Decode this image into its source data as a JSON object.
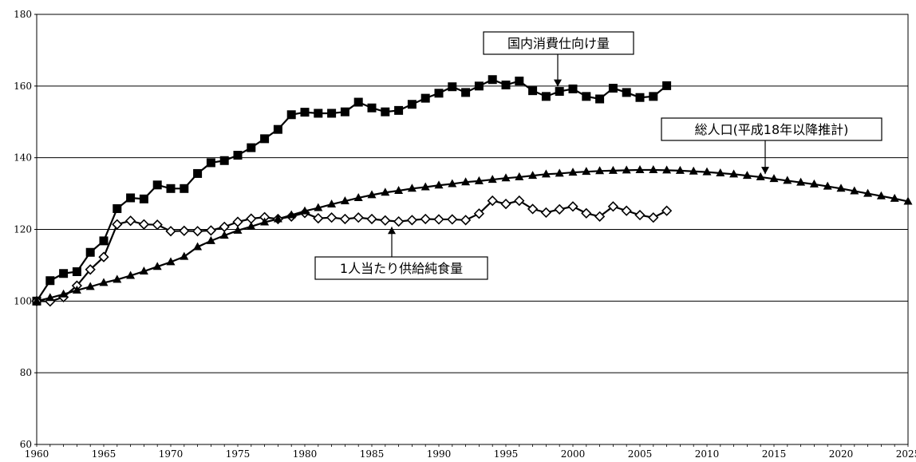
{
  "chart_data": {
    "type": "line",
    "title": "",
    "xlabel": "",
    "ylabel": "",
    "xlim": [
      1960,
      2025
    ],
    "ylim": [
      60,
      180
    ],
    "yticks": [
      60,
      80,
      100,
      120,
      140,
      160,
      180
    ],
    "xticks": [
      1960,
      1965,
      1970,
      1975,
      1980,
      1985,
      1990,
      1995,
      2000,
      2005,
      2010,
      2015,
      2020,
      2025
    ],
    "grid": "horizontal",
    "legend": "none",
    "series": [
      {
        "name": "国内消費仕向け量",
        "marker": "square-filled",
        "color": "#000000",
        "points": [
          [
            1960,
            100.0
          ],
          [
            1961,
            105.7
          ],
          [
            1962,
            107.7
          ],
          [
            1963,
            108.2
          ],
          [
            1964,
            113.6
          ],
          [
            1965,
            116.8
          ],
          [
            1966,
            125.8
          ],
          [
            1967,
            128.8
          ],
          [
            1968,
            128.5
          ],
          [
            1969,
            132.4
          ],
          [
            1970,
            131.4
          ],
          [
            1971,
            131.4
          ],
          [
            1972,
            135.6
          ],
          [
            1973,
            138.6
          ],
          [
            1974,
            139.2
          ],
          [
            1975,
            140.7
          ],
          [
            1976,
            142.8
          ],
          [
            1977,
            145.3
          ],
          [
            1978,
            147.9
          ],
          [
            1979,
            152.0
          ],
          [
            1980,
            152.7
          ],
          [
            1981,
            152.4
          ],
          [
            1982,
            152.4
          ],
          [
            1983,
            152.8
          ],
          [
            1984,
            155.5
          ],
          [
            1985,
            153.9
          ],
          [
            1986,
            152.8
          ],
          [
            1987,
            153.2
          ],
          [
            1988,
            154.9
          ],
          [
            1989,
            156.6
          ],
          [
            1990,
            158.0
          ],
          [
            1991,
            159.8
          ],
          [
            1992,
            158.2
          ],
          [
            1993,
            160.0
          ],
          [
            1994,
            161.8
          ],
          [
            1995,
            160.3
          ],
          [
            1996,
            161.4
          ],
          [
            1997,
            158.7
          ],
          [
            1998,
            157.1
          ],
          [
            1999,
            158.5
          ],
          [
            2000,
            159.2
          ],
          [
            2001,
            157.1
          ],
          [
            2002,
            156.4
          ],
          [
            2003,
            159.4
          ],
          [
            2004,
            158.2
          ],
          [
            2005,
            156.8
          ],
          [
            2006,
            157.1
          ],
          [
            2007,
            160.1
          ]
        ]
      },
      {
        "name": "1人当たり供給純食量",
        "marker": "diamond-open",
        "color": "#000000",
        "points": [
          [
            1960,
            100.0
          ],
          [
            1961,
            99.9
          ],
          [
            1962,
            101.1
          ],
          [
            1963,
            104.3
          ],
          [
            1964,
            108.8
          ],
          [
            1965,
            112.3
          ],
          [
            1966,
            121.4
          ],
          [
            1967,
            122.4
          ],
          [
            1968,
            121.4
          ],
          [
            1969,
            121.3
          ],
          [
            1970,
            119.5
          ],
          [
            1971,
            119.6
          ],
          [
            1972,
            119.5
          ],
          [
            1973,
            119.7
          ],
          [
            1974,
            120.7
          ],
          [
            1975,
            122.1
          ],
          [
            1976,
            123.0
          ],
          [
            1977,
            123.4
          ],
          [
            1978,
            122.9
          ],
          [
            1979,
            123.6
          ],
          [
            1980,
            124.6
          ],
          [
            1981,
            123.1
          ],
          [
            1982,
            123.3
          ],
          [
            1983,
            122.9
          ],
          [
            1984,
            123.3
          ],
          [
            1985,
            122.9
          ],
          [
            1986,
            122.5
          ],
          [
            1987,
            122.2
          ],
          [
            1988,
            122.6
          ],
          [
            1989,
            122.9
          ],
          [
            1990,
            122.8
          ],
          [
            1991,
            122.8
          ],
          [
            1992,
            122.6
          ],
          [
            1993,
            124.4
          ],
          [
            1994,
            128.0
          ],
          [
            1995,
            127.1
          ],
          [
            1996,
            128.0
          ],
          [
            1997,
            125.7
          ],
          [
            1998,
            124.7
          ],
          [
            1999,
            125.6
          ],
          [
            2000,
            126.4
          ],
          [
            2001,
            124.5
          ],
          [
            2002,
            123.6
          ],
          [
            2003,
            126.4
          ],
          [
            2004,
            125.2
          ],
          [
            2005,
            124.0
          ],
          [
            2006,
            123.3
          ],
          [
            2007,
            125.2
          ]
        ]
      },
      {
        "name": "総人口(平成18年以降推計)",
        "marker": "triangle-filled",
        "color": "#000000",
        "points": [
          [
            1960,
            100.0
          ],
          [
            1961,
            100.9
          ],
          [
            1962,
            101.9
          ],
          [
            1963,
            103.0
          ],
          [
            1964,
            104.0
          ],
          [
            1965,
            105.1
          ],
          [
            1966,
            106.0
          ],
          [
            1967,
            107.1
          ],
          [
            1968,
            108.3
          ],
          [
            1969,
            109.6
          ],
          [
            1970,
            110.9
          ],
          [
            1971,
            112.4
          ],
          [
            1972,
            115.1
          ],
          [
            1973,
            116.8
          ],
          [
            1974,
            118.3
          ],
          [
            1975,
            119.7
          ],
          [
            1976,
            120.8
          ],
          [
            1977,
            122.0
          ],
          [
            1978,
            122.9
          ],
          [
            1979,
            124.0
          ],
          [
            1980,
            125.1
          ],
          [
            1981,
            126.0
          ],
          [
            1982,
            127.0
          ],
          [
            1983,
            127.9
          ],
          [
            1984,
            128.8
          ],
          [
            1985,
            129.6
          ],
          [
            1986,
            130.3
          ],
          [
            1987,
            130.8
          ],
          [
            1988,
            131.4
          ],
          [
            1989,
            131.8
          ],
          [
            1990,
            132.3
          ],
          [
            1991,
            132.7
          ],
          [
            1992,
            133.2
          ],
          [
            1993,
            133.5
          ],
          [
            1994,
            133.9
          ],
          [
            1995,
            134.3
          ],
          [
            1996,
            134.6
          ],
          [
            1997,
            135.0
          ],
          [
            1998,
            135.4
          ],
          [
            1999,
            135.6
          ],
          [
            2000,
            135.9
          ],
          [
            2001,
            136.1
          ],
          [
            2002,
            136.3
          ],
          [
            2003,
            136.4
          ],
          [
            2004,
            136.5
          ],
          [
            2005,
            136.6
          ],
          [
            2006,
            136.6
          ],
          [
            2007,
            136.5
          ],
          [
            2008,
            136.4
          ],
          [
            2009,
            136.2
          ],
          [
            2010,
            136.0
          ],
          [
            2011,
            135.7
          ],
          [
            2012,
            135.4
          ],
          [
            2013,
            135.0
          ],
          [
            2014,
            134.6
          ],
          [
            2015,
            134.1
          ],
          [
            2016,
            133.6
          ],
          [
            2017,
            133.1
          ],
          [
            2018,
            132.6
          ],
          [
            2019,
            132.0
          ],
          [
            2020,
            131.4
          ],
          [
            2021,
            130.7
          ],
          [
            2022,
            130.0
          ],
          [
            2023,
            129.3
          ],
          [
            2024,
            128.6
          ],
          [
            2025,
            127.8
          ]
        ]
      }
    ],
    "annotations": [
      {
        "text": "国内消費仕向け量",
        "target": [
          1999,
          158.5
        ]
      },
      {
        "text": "総人口(平成18年以降推計)",
        "target": [
          2015,
          134.1
        ]
      },
      {
        "text": "1人当たり供給純食量",
        "target": [
          1986,
          122.5
        ]
      }
    ]
  }
}
